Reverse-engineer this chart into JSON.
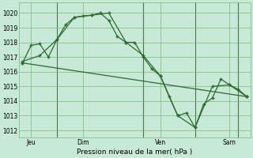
{
  "xlabel": "Pression niveau de la mer( hPa )",
  "bg_color": "#c8e8d8",
  "grid_color": "#7ab87a",
  "line_color": "#2d6a2d",
  "ylim": [
    1011.5,
    1020.7
  ],
  "yticks": [
    1012,
    1013,
    1014,
    1015,
    1016,
    1017,
    1018,
    1019,
    1020
  ],
  "xlim": [
    -0.2,
    13.2
  ],
  "series1_x": [
    0.0,
    0.5,
    1.0,
    1.5,
    2.0,
    2.5,
    3.0,
    3.5,
    4.0,
    4.5,
    5.0,
    5.5,
    6.0,
    6.5,
    7.0,
    7.5,
    8.0,
    8.5,
    9.0,
    9.5,
    10.0,
    10.5,
    11.0,
    11.5,
    12.0,
    12.5,
    13.0
  ],
  "series1_y": [
    1016.6,
    1017.8,
    1017.9,
    1017.0,
    1018.2,
    1019.2,
    1019.7,
    1019.8,
    1019.85,
    1020.0,
    1019.5,
    1018.4,
    1018.0,
    1018.0,
    1017.0,
    1016.2,
    1015.7,
    1014.3,
    1013.0,
    1013.2,
    1012.2,
    1013.8,
    1014.2,
    1015.5,
    1015.1,
    1014.8,
    1014.3
  ],
  "series2_x": [
    0.0,
    1.0,
    2.0,
    3.0,
    4.0,
    5.0,
    6.0,
    7.0,
    8.0,
    9.0,
    10.0,
    11.0,
    12.0,
    13.0
  ],
  "series2_y": [
    1016.7,
    1017.1,
    1018.2,
    1019.7,
    1019.85,
    1020.0,
    1018.0,
    1017.1,
    1015.7,
    1013.0,
    1012.2,
    1015.0,
    1015.1,
    1014.3
  ],
  "series3_x": [
    0.0,
    13.0
  ],
  "series3_y": [
    1016.6,
    1014.3
  ],
  "vlines_x": [
    2.0,
    7.0,
    10.0,
    12.5
  ],
  "xtick_positions": [
    0.5,
    3.5,
    8.0,
    12.0
  ],
  "xtick_labels": [
    "Jeu",
    "Dim",
    "Ven",
    "Sam"
  ],
  "figsize": [
    3.2,
    2.0
  ],
  "dpi": 100
}
